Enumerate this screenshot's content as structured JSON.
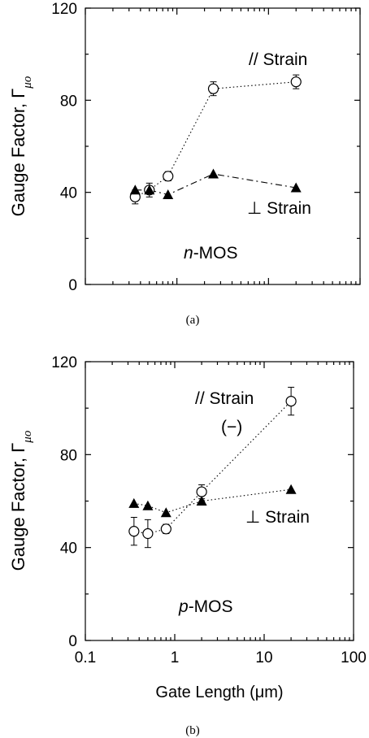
{
  "chart_data": [
    {
      "type": "scatter",
      "panel_label": "(a)",
      "ylabel": "Gauge Factor, Γ",
      "ylabel_subscript": "μo",
      "ylim": [
        0,
        120
      ],
      "yticks": [
        0,
        40,
        80,
        120
      ],
      "xscale": "log",
      "xlim": [
        0.1,
        100
      ],
      "device_label_italic": "n",
      "device_label_rest": "-MOS",
      "series": [
        {
          "name": "// Strain",
          "marker": "open-circle",
          "line": "dotted",
          "x": [
            0.35,
            0.5,
            0.8,
            2.5,
            20
          ],
          "y": [
            38,
            41,
            47,
            85,
            88
          ],
          "err": [
            3,
            3,
            2,
            3,
            3
          ]
        },
        {
          "name": "⊥ Strain",
          "marker": "filled-triangle",
          "line": "dash-dot",
          "x": [
            0.35,
            0.5,
            0.8,
            2.5,
            20
          ],
          "y": [
            41,
            41,
            39,
            48,
            42
          ],
          "err": [
            0,
            0,
            0,
            0,
            0
          ]
        }
      ],
      "grid": false,
      "legend": "inline-labels"
    },
    {
      "type": "scatter",
      "panel_label": "(b)",
      "ylabel": "Gauge Factor, Γ",
      "ylabel_subscript": "μo",
      "xlabel": "Gate Length (μm)",
      "ylim": [
        0,
        120
      ],
      "yticks": [
        0,
        40,
        80,
        120
      ],
      "xscale": "log",
      "xlim": [
        0.1,
        100
      ],
      "xticks": [
        "0.1",
        "1",
        "10",
        "100"
      ],
      "device_label_italic": "p",
      "device_label_rest": "-MOS",
      "series": [
        {
          "name": "// Strain",
          "name_line2": "(−)",
          "marker": "open-circle",
          "line": "dotted",
          "x": [
            0.35,
            0.5,
            0.8,
            2,
            20
          ],
          "y": [
            47,
            46,
            48,
            64,
            103
          ],
          "err": [
            6,
            6,
            2,
            3,
            6
          ]
        },
        {
          "name": "⊥ Strain",
          "marker": "filled-triangle",
          "line": "dotted",
          "x": [
            0.35,
            0.5,
            0.8,
            2,
            20
          ],
          "y": [
            59,
            58,
            55,
            60,
            65
          ],
          "err": [
            0,
            0,
            0,
            0,
            0
          ]
        }
      ],
      "grid": false,
      "legend": "inline-labels"
    }
  ]
}
